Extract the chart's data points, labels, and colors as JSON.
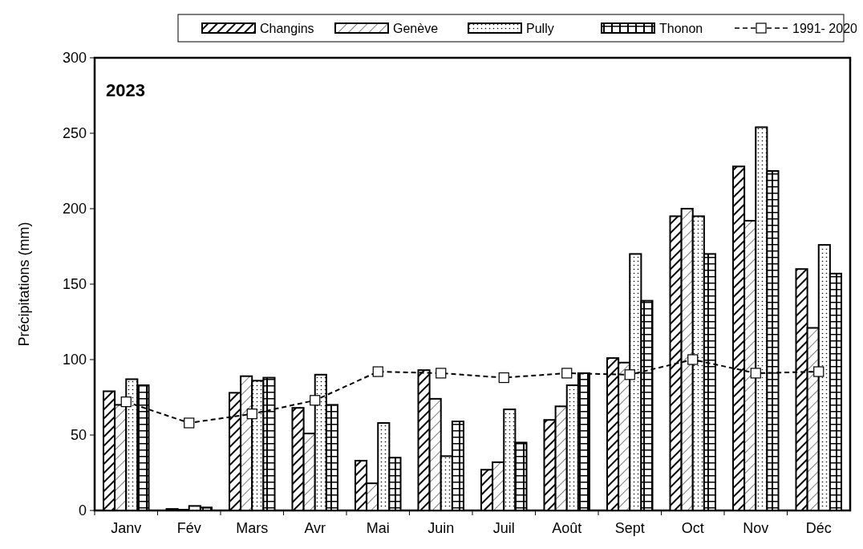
{
  "chart_data": {
    "type": "bar",
    "ylabel": "Précipitations (mm)",
    "annotations": [
      "2023"
    ],
    "categories": [
      "Janv",
      "Fév",
      "Mars",
      "Avr",
      "Mai",
      "Juin",
      "Juil",
      "Août",
      "Sept",
      "Oct",
      "Nov",
      "Déc"
    ],
    "series": [
      {
        "name": "Changins",
        "color": "#000000",
        "values": [
          79,
          1,
          78,
          68,
          33,
          93,
          27,
          60,
          101,
          195,
          228,
          160
        ]
      },
      {
        "name": "Genève",
        "color": "#000000",
        "values": [
          70,
          0.5,
          89,
          51,
          18,
          74,
          32,
          69,
          98,
          200,
          192,
          121
        ]
      },
      {
        "name": "Pully",
        "color": "#000000",
        "values": [
          87,
          3,
          86,
          90,
          58,
          36,
          67,
          83,
          170,
          195,
          254,
          176
        ]
      },
      {
        "name": "Thonon",
        "color": "#000000",
        "values": [
          83,
          2,
          88,
          70,
          35,
          59,
          45,
          91,
          139,
          170,
          225,
          157
        ]
      },
      {
        "name": "1991- 2020",
        "type": "line",
        "color": "#000000",
        "marker": "square",
        "line_style": "dashed",
        "values": [
          72,
          58,
          64,
          73,
          92,
          91,
          88,
          91,
          90,
          100,
          91,
          92
        ]
      }
    ],
    "ylim": [
      0,
      300
    ],
    "yticks": [
      0,
      50,
      100,
      150,
      200,
      250,
      300
    ],
    "grid": false,
    "legend": "top"
  }
}
